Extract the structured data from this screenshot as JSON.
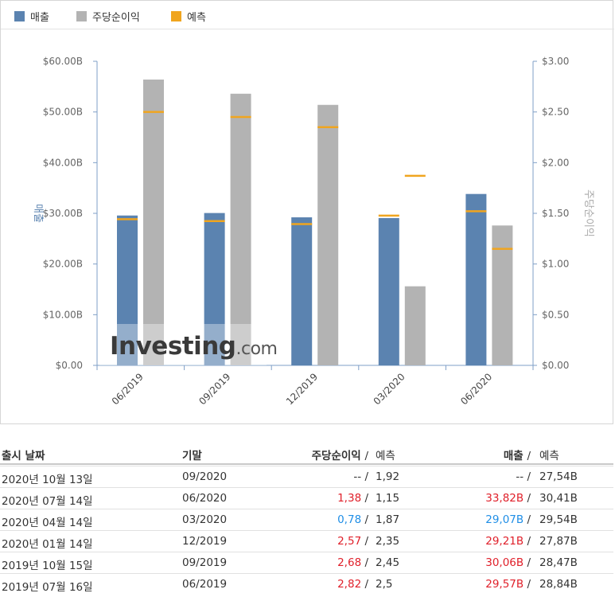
{
  "legend": [
    {
      "label": "매출",
      "color": "#5b83b0"
    },
    {
      "label": "주당순이익",
      "color": "#b3b3b3"
    },
    {
      "label": "예측",
      "color": "#f0a51f"
    }
  ],
  "watermark": {
    "part1": "Investing",
    "part2": ".com"
  },
  "chart_data": {
    "type": "bar",
    "categories": [
      "06/2019",
      "09/2019",
      "12/2019",
      "03/2020",
      "06/2020"
    ],
    "left_axis": {
      "label": "매출",
      "ticks": [
        "$0.00",
        "$10.00B",
        "$20.00B",
        "$30.00B",
        "$40.00B",
        "$50.00B",
        "$60.00B"
      ],
      "range": [
        0,
        60
      ]
    },
    "right_axis": {
      "label": "주당순이익",
      "ticks": [
        "$0.00",
        "$0.50",
        "$1.00",
        "$1.50",
        "$2.00",
        "$2.50",
        "$3.00"
      ],
      "range": [
        0,
        3
      ]
    },
    "series": [
      {
        "name": "매출",
        "axis": "left",
        "unit": "B",
        "values": [
          29.57,
          30.06,
          29.21,
          29.07,
          33.82
        ],
        "color": "#5b83b0"
      },
      {
        "name": "주당순이익",
        "axis": "right",
        "values": [
          2.82,
          2.68,
          2.57,
          0.78,
          1.38
        ],
        "color": "#b3b3b3"
      },
      {
        "name": "예측",
        "axis": "left",
        "target": "매출",
        "values": [
          28.84,
          28.47,
          27.87,
          29.54,
          30.41
        ],
        "color": "#f0a51f"
      },
      {
        "name": "예측",
        "axis": "right",
        "target": "주당순이익",
        "values": [
          2.5,
          2.45,
          2.35,
          1.87,
          1.15
        ],
        "color": "#f0a51f"
      }
    ],
    "grid": false,
    "legend_position": "top-left"
  },
  "table": {
    "headers": {
      "date": "출시 날짜",
      "period": "기말",
      "eps": "주당순이익",
      "sep": "/",
      "forecast": "예측",
      "revenue": "매출"
    },
    "rows": [
      {
        "date": "2020년 10월 13일",
        "period": "09/2020",
        "eps": "--",
        "eps_forecast": "1,92",
        "revenue": "--",
        "revenue_forecast": "27,54B",
        "eps_color": "dark",
        "revenue_color": "dark"
      },
      {
        "date": "2020년 07월 14일",
        "period": "06/2020",
        "eps": "1,38",
        "eps_forecast": "1,15",
        "revenue": "33,82B",
        "revenue_forecast": "30,41B",
        "eps_color": "red",
        "revenue_color": "red"
      },
      {
        "date": "2020년 04월 14일",
        "period": "03/2020",
        "eps": "0,78",
        "eps_forecast": "1,87",
        "revenue": "29,07B",
        "revenue_forecast": "29,54B",
        "eps_color": "blue",
        "revenue_color": "blue"
      },
      {
        "date": "2020년 01월 14일",
        "period": "12/2019",
        "eps": "2,57",
        "eps_forecast": "2,35",
        "revenue": "29,21B",
        "revenue_forecast": "27,87B",
        "eps_color": "red",
        "revenue_color": "red"
      },
      {
        "date": "2019년 10월 15일",
        "period": "09/2019",
        "eps": "2,68",
        "eps_forecast": "2,45",
        "revenue": "30,06B",
        "revenue_forecast": "28,47B",
        "eps_color": "red",
        "revenue_color": "red"
      },
      {
        "date": "2019년 07월 16일",
        "period": "06/2019",
        "eps": "2,82",
        "eps_forecast": "2,5",
        "revenue": "29,57B",
        "revenue_forecast": "28,84B",
        "eps_color": "red",
        "revenue_color": "red"
      }
    ]
  }
}
